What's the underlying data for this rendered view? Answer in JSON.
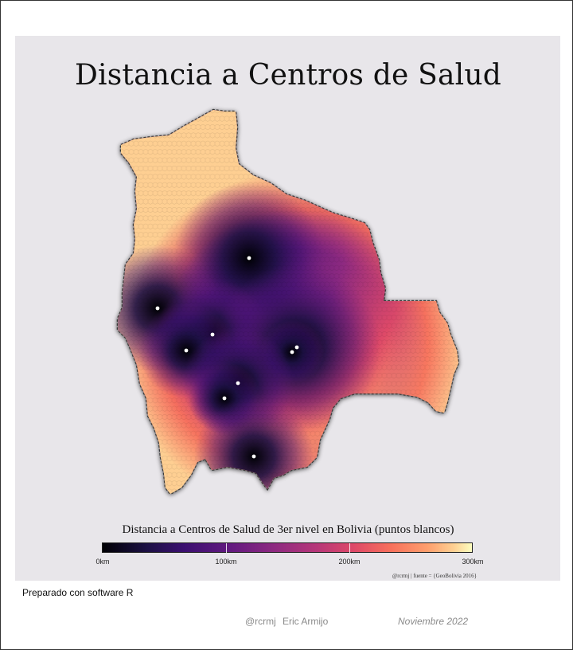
{
  "title": "Distancia a Centros de Salud",
  "legend": {
    "title": "Distancia a Centros de Salud de 3er nivel en Bolivia (puntos blancos)",
    "ticks": [
      "0km",
      "100km",
      "200km",
      "300km"
    ],
    "tick_values_km": [
      0,
      100,
      200,
      300
    ],
    "max_km": 300,
    "palette": "magma"
  },
  "credit": "@rcrmj | fuente = {GeoBolivia 2016}",
  "prepared_by": "Preparado con software R",
  "footer": {
    "handle": "@rcrmj",
    "author": "Eric Armijo",
    "date": "Noviembre 2022"
  },
  "colors": {
    "panel_background": "#e8e6ea",
    "hospital_dot": "#ffffff"
  }
}
